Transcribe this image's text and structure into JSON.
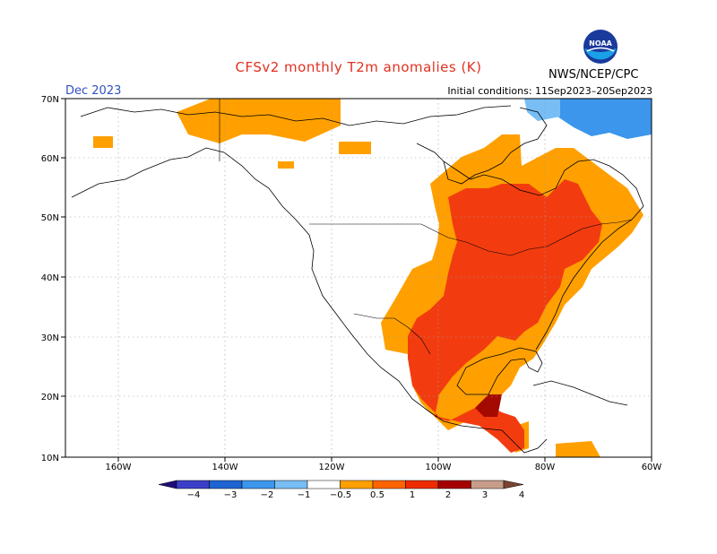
{
  "title": "CFSv2 monthly T2m anomalies (K)",
  "month": "Dec 2023",
  "initial_conditions": "Initial conditions: 11Sep2023–20Sep2023",
  "org": "NWS/NCEP/CPC",
  "logo": {
    "text": "NOAA",
    "icon": "noaa-logo-icon",
    "colors": [
      "#1a3a9c",
      "#19a0e6"
    ]
  },
  "colors": {
    "title": "#e03020",
    "month": "#3050c0"
  },
  "axes": {
    "lat_labels": [
      "70N",
      "60N",
      "50N",
      "40N",
      "30N",
      "20N",
      "10N"
    ],
    "lon_labels": [
      "160W",
      "140W",
      "120W",
      "100W",
      "80W",
      "60W"
    ]
  },
  "colorbar": {
    "labels": [
      "−4",
      "−3",
      "−2",
      "−1",
      "−0.5",
      "0.5",
      "1",
      "2",
      "3",
      "4"
    ],
    "colors": [
      "#1e0e7a",
      "#3b3fc8",
      "#1e64d2",
      "#3c96eb",
      "#78bef5",
      "#ffffff",
      "#ffa000",
      "#ff6400",
      "#ee2c00",
      "#a50000",
      "#c79c8a",
      "#7a4430"
    ]
  },
  "anomaly_regions": [
    {
      "name": "north-canada-weak-warm",
      "level": 0.5,
      "color": "#ffa000"
    },
    {
      "name": "eastern-canada-warm",
      "level": 1.0,
      "color": "#f23c10"
    },
    {
      "name": "eastern-us-warm",
      "level": 1.0,
      "color": "#f23c10"
    },
    {
      "name": "gulf-mexico-strong-warm",
      "level": 2.0,
      "color": "#a50a00"
    },
    {
      "name": "greenland-cold",
      "level": -1.0,
      "color": "#3c96eb"
    }
  ]
}
